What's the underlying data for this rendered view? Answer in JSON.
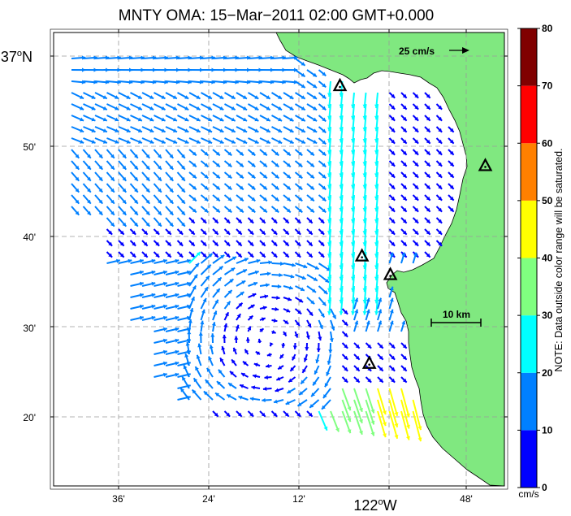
{
  "title": "MNTY OMA: 15−Mar−2011 02:00 GMT+0.000",
  "lat_labels": {
    "major": [
      "37",
      "N"
    ],
    "minor": [
      "50'",
      "40'",
      "30'",
      "20'"
    ]
  },
  "lon_labels": {
    "minor": [
      "36'",
      "24'",
      "12'",
      "48'"
    ],
    "major": [
      "122",
      "W"
    ]
  },
  "scale_vector_label": "25 cm/s",
  "scale_bar_label": "10 km",
  "colorbar": {
    "ticks": [
      "0",
      "10",
      "20",
      "30",
      "40",
      "50",
      "60",
      "70",
      "80"
    ],
    "colors": [
      "#0000ff",
      "#0080ff",
      "#00ffff",
      "#80ff80",
      "#ffff00",
      "#ff8000",
      "#ff0000",
      "#800000"
    ],
    "unit": "cm/s",
    "note": "NOTE: Data outside color range will be saturated."
  },
  "map_colors": {
    "land": "#80e880",
    "frame": "#000000",
    "grid": "#9a9a9a"
  },
  "stations": [
    {
      "lon": -122.082,
      "lat": 36.95
    },
    {
      "lon": -121.785,
      "lat": 36.804
    },
    {
      "lon": -122.037,
      "lat": 36.639
    },
    {
      "lon": -121.979,
      "lat": 36.605
    },
    {
      "lon": -122.022,
      "lat": 36.443
    }
  ],
  "legend_icon": "triangle-station-icon"
}
